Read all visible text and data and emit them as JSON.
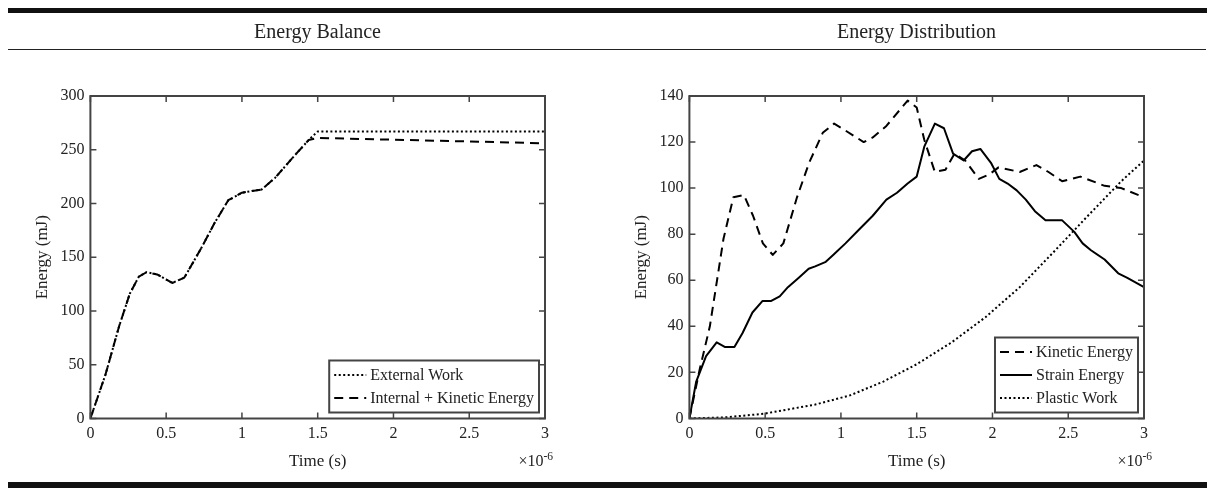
{
  "chart_data": [
    {
      "type": "line",
      "title": "Energy Balance",
      "xlabel": "Time (s)",
      "ylabel": "Energy (mJ)",
      "xlim": [
        0,
        3
      ],
      "xticks": [
        0,
        0.5,
        1,
        1.5,
        2,
        2.5,
        3
      ],
      "ylim": [
        0,
        300
      ],
      "yticks": [
        0,
        50,
        100,
        150,
        200,
        250,
        300
      ],
      "grid": false,
      "legend": "bottom right",
      "marker": "none",
      "annotations": [
        "×10$^{-6}$"
      ],
      "series": [
        {
          "name": "External Work",
          "color": "#000000",
          "line_style": "dotted",
          "x": [
            0,
            0.1,
            0.19,
            0.26,
            0.32,
            0.37,
            0.44,
            0.54,
            0.62,
            0.73,
            0.82,
            0.91,
            1.0,
            1.13,
            1.22,
            1.35,
            1.44,
            1.5,
            3
          ],
          "values": [
            0,
            41,
            86,
            116,
            132,
            136,
            134,
            126,
            131,
            158,
            182,
            203,
            210,
            213,
            224,
            245,
            259,
            267,
            267
          ]
        },
        {
          "name": "Internal + Kinetic Energy",
          "color": "#000000",
          "line_style": "dashed",
          "x": [
            0,
            0.1,
            0.19,
            0.26,
            0.32,
            0.37,
            0.44,
            0.54,
            0.62,
            0.73,
            0.82,
            0.91,
            1.0,
            1.13,
            1.22,
            1.35,
            1.44,
            1.5,
            3
          ],
          "values": [
            0,
            41,
            86,
            116,
            132,
            136,
            134,
            126,
            131,
            158,
            182,
            203,
            210,
            213,
            224,
            245,
            259,
            261,
            256
          ]
        }
      ]
    },
    {
      "type": "line",
      "title": "Energy Distribution",
      "xlabel": "Time (s)",
      "ylabel": "Energy (mJ)",
      "xlim": [
        0,
        3
      ],
      "xticks": [
        0,
        0.5,
        1,
        1.5,
        2,
        2.5,
        3
      ],
      "ylim": [
        0,
        140
      ],
      "yticks": [
        0,
        20,
        40,
        60,
        80,
        100,
        120,
        140
      ],
      "grid": false,
      "legend": "bottom right",
      "marker": "none",
      "annotations": [
        "×10$^{-6}$"
      ],
      "series": [
        {
          "name": "Kinetic Energy",
          "color": "#000000",
          "line_style": "dashed",
          "x": [
            0,
            0.067,
            0.135,
            0.225,
            0.29,
            0.36,
            0.42,
            0.485,
            0.55,
            0.62,
            0.71,
            0.79,
            0.88,
            0.955,
            1.03,
            1.15,
            1.21,
            1.3,
            1.44,
            1.5,
            1.55,
            1.62,
            1.69,
            1.75,
            1.82,
            1.91,
            1.98,
            2.04,
            2.18,
            2.29,
            2.37,
            2.46,
            2.58,
            2.74,
            2.85,
            3.0
          ],
          "values": [
            0,
            21,
            40,
            78,
            96,
            97,
            88,
            76,
            71,
            76,
            96,
            111,
            124,
            128,
            125,
            120,
            122,
            127,
            138,
            135,
            121,
            107,
            108,
            115,
            112,
            104,
            106,
            109,
            107,
            110,
            107,
            103,
            105,
            101,
            100,
            96
          ]
        },
        {
          "name": "Strain Energy",
          "color": "#000000",
          "line_style": "solid",
          "x": [
            0,
            0.045,
            0.11,
            0.18,
            0.236,
            0.297,
            0.35,
            0.416,
            0.483,
            0.54,
            0.596,
            0.65,
            0.72,
            0.787,
            0.83,
            0.9,
            0.966,
            1.03,
            1.12,
            1.21,
            1.3,
            1.37,
            1.44,
            1.5,
            1.55,
            1.62,
            1.68,
            1.74,
            1.81,
            1.865,
            1.92,
            1.99,
            2.045,
            2.1,
            2.16,
            2.22,
            2.28,
            2.35,
            2.46,
            2.54,
            2.595,
            2.65,
            2.74,
            2.83,
            2.89,
            3.0
          ],
          "values": [
            0,
            16,
            27,
            33,
            31,
            31,
            37,
            46,
            51,
            51,
            53,
            57,
            61,
            65,
            66,
            68,
            72,
            76,
            82,
            88,
            95,
            98,
            102,
            105,
            118,
            128,
            126,
            115,
            112,
            116,
            117,
            111,
            104,
            102,
            99,
            95,
            90,
            86,
            86,
            81,
            76,
            73,
            69,
            63,
            61,
            57
          ]
        },
        {
          "name": "Plastic Work",
          "color": "#000000",
          "line_style": "dotted",
          "x": [
            0,
            0.225,
            0.49,
            0.83,
            1.06,
            1.28,
            1.5,
            1.73,
            1.955,
            2.18,
            2.4,
            2.63,
            2.85,
            3.0
          ],
          "values": [
            0,
            0.4,
            2,
            6,
            10,
            16,
            23.5,
            33,
            44,
            57,
            72,
            88,
            103,
            112
          ]
        }
      ]
    }
  ]
}
